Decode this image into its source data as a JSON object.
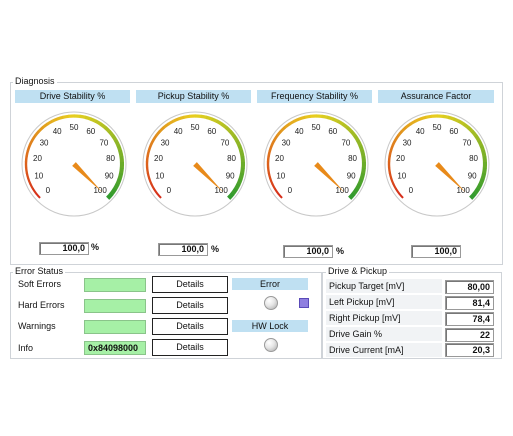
{
  "diagnosis": {
    "title": "Diagnosis",
    "gauges": [
      {
        "label": "Drive Stability %",
        "value": 100,
        "readout": "100,0",
        "unit": "%",
        "ticks": [
          "0",
          "10",
          "20",
          "30",
          "40",
          "50",
          "60",
          "70",
          "80",
          "90",
          "100"
        ]
      },
      {
        "label": "Pickup Stability %",
        "value": 100,
        "readout": "100,0",
        "unit": "%",
        "ticks": [
          "0",
          "10",
          "20",
          "30",
          "40",
          "50",
          "60",
          "70",
          "80",
          "90",
          "100"
        ]
      },
      {
        "label": "Frequency Stability %",
        "value": 100,
        "readout": "100,0",
        "unit": "%",
        "ticks": [
          "0",
          "10",
          "20",
          "30",
          "40",
          "50",
          "60",
          "70",
          "80",
          "90",
          "100"
        ]
      },
      {
        "label": "Assurance Factor",
        "value": 100,
        "readout": "100,0",
        "unit": "",
        "ticks": [
          "0",
          "10",
          "20",
          "30",
          "40",
          "50",
          "60",
          "70",
          "80",
          "90",
          "100"
        ]
      }
    ]
  },
  "error_status": {
    "title": "Error Status",
    "rows": [
      {
        "label": "Soft Errors",
        "indicator": "",
        "button": "Details"
      },
      {
        "label": "Hard Errors",
        "indicator": "",
        "button": "Details"
      },
      {
        "label": "Warnings",
        "indicator": "",
        "button": "Details"
      },
      {
        "label": "Info",
        "indicator": "0x84098000",
        "button": "Details"
      }
    ],
    "error_label": "Error",
    "hwlock_label": "HW Lock"
  },
  "drive_pickup": {
    "title": "Drive & Pickup",
    "rows": [
      {
        "label": "Pickup Target [mV]",
        "value": "80,00"
      },
      {
        "label": "Left Pickup [mV]",
        "value": "81,4"
      },
      {
        "label": "Right Pickup [mV]",
        "value": "78,4"
      },
      {
        "label": "Drive Gain %",
        "value": "22"
      },
      {
        "label": "Drive Current [mA]",
        "value": "20,3"
      }
    ]
  },
  "colors": {
    "header_blue": "#bfe0f2",
    "led_green": "#a6f0a6",
    "needle": "#e88a1a",
    "scale_red": "#d62a1a",
    "scale_yellow": "#e8d020",
    "scale_green": "#2e9a2e"
  }
}
